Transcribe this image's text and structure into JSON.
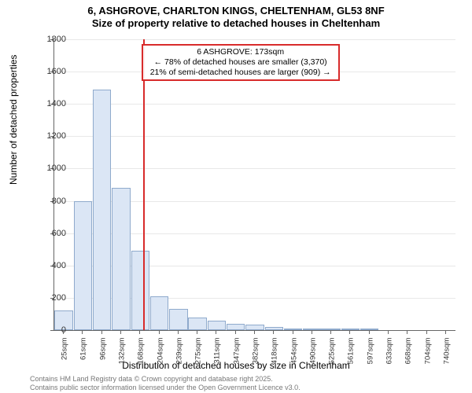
{
  "title": {
    "line1": "6, ASHGROVE, CHARLTON KINGS, CHELTENHAM, GL53 8NF",
    "line2": "Size of property relative to detached houses in Cheltenham"
  },
  "chart": {
    "type": "histogram",
    "background_color": "#ffffff",
    "grid_color": "#e8e8e8",
    "axis_color": "#666666",
    "bar_fill": "#dbe6f5",
    "bar_stroke": "#8faacc",
    "marker_color": "#d82b2b",
    "ylabel": "Number of detached properties",
    "xlabel": "Distribution of detached houses by size in Cheltenham",
    "ylabel_fontsize": 12,
    "xlabel_fontsize": 12,
    "tick_fontsize": 11,
    "ylim": [
      0,
      1800
    ],
    "ytick_step": 200,
    "x_categories": [
      "25sqm",
      "61sqm",
      "96sqm",
      "132sqm",
      "168sqm",
      "204sqm",
      "239sqm",
      "275sqm",
      "311sqm",
      "347sqm",
      "382sqm",
      "418sqm",
      "454sqm",
      "490sqm",
      "525sqm",
      "561sqm",
      "597sqm",
      "633sqm",
      "668sqm",
      "704sqm",
      "740sqm"
    ],
    "values": [
      120,
      800,
      1490,
      880,
      490,
      210,
      130,
      80,
      60,
      40,
      32,
      20,
      10,
      8,
      5,
      12,
      4,
      0,
      0,
      0,
      0
    ],
    "marker_position": 173,
    "x_numeric_start": 25,
    "x_numeric_step": 35.75
  },
  "annotation": {
    "line1": "6 ASHGROVE: 173sqm",
    "line2": "← 78% of detached houses are smaller (3,370)",
    "line3": "21% of semi-detached houses are larger (909) →"
  },
  "footer": {
    "line1": "Contains HM Land Registry data © Crown copyright and database right 2025.",
    "line2": "Contains public sector information licensed under the Open Government Licence v3.0."
  }
}
